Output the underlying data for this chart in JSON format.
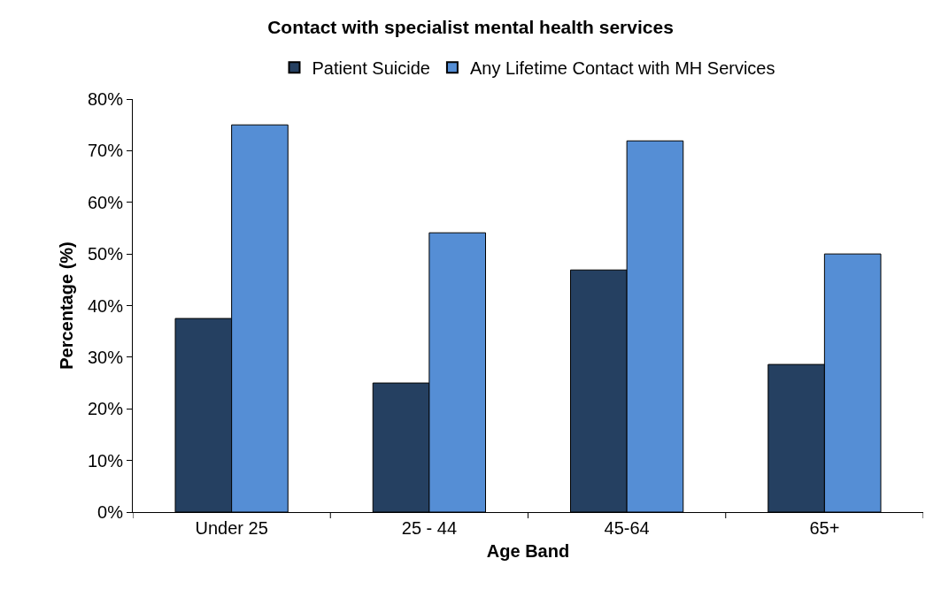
{
  "chart_data": {
    "type": "bar",
    "title": "Contact with specialist mental health services",
    "xlabel": "Age Band",
    "ylabel": "Percentage (%)",
    "categories": [
      "Under 25",
      "25 - 44",
      "45-64",
      "65+"
    ],
    "series": [
      {
        "name": "Patient Suicide",
        "color": "#254061",
        "values": [
          37.5,
          25.0,
          46.9,
          28.6
        ]
      },
      {
        "name": "Any Lifetime Contact with MH Services",
        "color": "#558ed5",
        "values": [
          75.0,
          54.1,
          71.9,
          50.0
        ]
      }
    ],
    "ylim": [
      0,
      80
    ],
    "yticks": [
      {
        "value": 0,
        "label": "0%"
      },
      {
        "value": 10,
        "label": "10%"
      },
      {
        "value": 20,
        "label": "20%"
      },
      {
        "value": 30,
        "label": "30%"
      },
      {
        "value": 40,
        "label": "40%"
      },
      {
        "value": 50,
        "label": "50%"
      },
      {
        "value": 60,
        "label": "60%"
      },
      {
        "value": 70,
        "label": "70%"
      },
      {
        "value": 80,
        "label": "80%"
      }
    ],
    "legend": "top"
  }
}
